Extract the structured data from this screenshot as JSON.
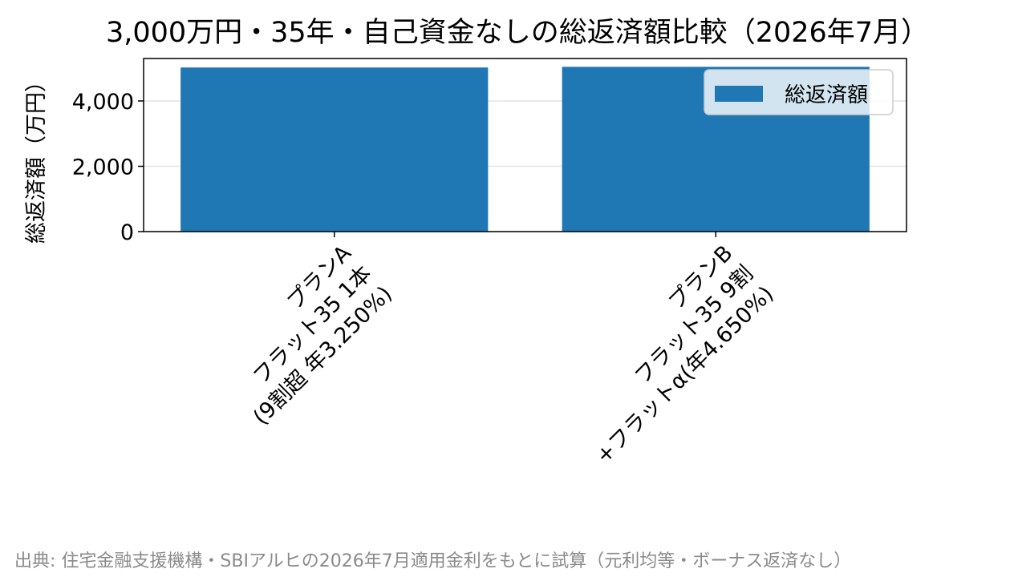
{
  "chart_data": {
    "type": "bar",
    "title": "3,000万円・35年・自己資金なしの総返済額比較（2026年7月）",
    "ylabel": "総返済額（万円）",
    "xlabel": "",
    "categories": [
      [
        "プランA",
        "フラット35 1本",
        "(9割超 年3.250%)"
      ],
      [
        "プランB",
        "フラット35 9割",
        "+フラットα(年4.650%)"
      ]
    ],
    "series": [
      {
        "name": "総返済額",
        "values": [
          5025,
          5045
        ],
        "color": "#1f77b4"
      }
    ],
    "ylim": [
      0,
      5300
    ],
    "yticks": [
      0,
      2000,
      4000
    ],
    "ytick_labels": [
      "0",
      "2,000",
      "4,000"
    ],
    "grid": "y",
    "legend": "top-right"
  },
  "source_note": "出典: 住宅金融支援機構・SBIアルヒの2026年7月適用金利をもとに試算（元利均等・ボーナス返済なし）"
}
